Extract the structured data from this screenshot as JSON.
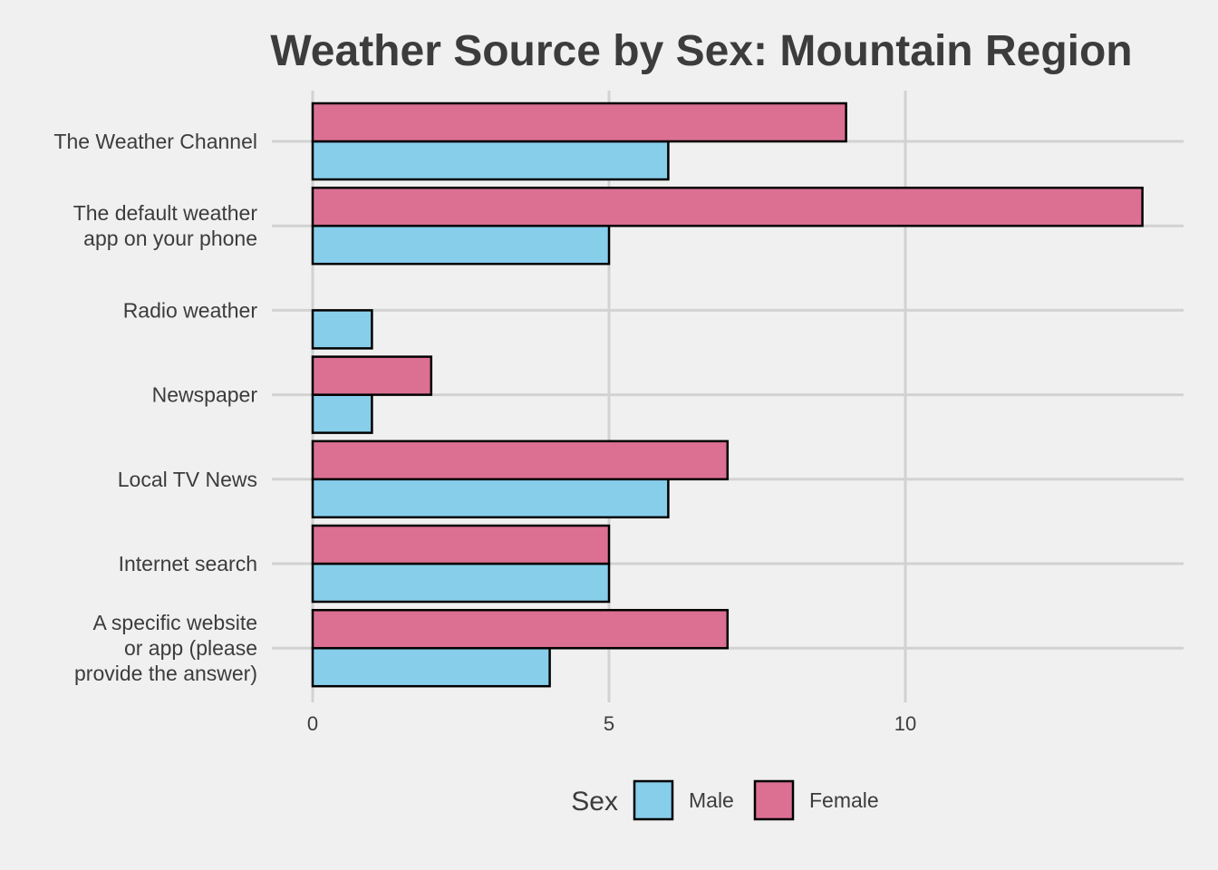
{
  "chart_data": {
    "type": "bar",
    "orientation": "horizontal",
    "title": "Weather Source by Sex: Mountain Region",
    "xlabel": "",
    "ylabel": "",
    "categories": [
      "The Weather Channel",
      "The default weather\napp on your phone",
      "Radio weather",
      "Newspaper",
      "Local TV News",
      "Internet search",
      "A specific website\nor app (please\nprovide the answer)"
    ],
    "series": [
      {
        "name": "Male",
        "color": "#87ceeb",
        "values": [
          6,
          5,
          1,
          1,
          6,
          5,
          4
        ]
      },
      {
        "name": "Female",
        "color": "#db7093",
        "values": [
          9,
          14,
          0,
          2,
          7,
          5,
          7
        ]
      }
    ],
    "xlim": [
      0,
      14.7
    ],
    "x_ticks": [
      0,
      5,
      10
    ],
    "grid": true,
    "legend": {
      "title": "Sex",
      "position": "bottom",
      "entries": [
        "Male",
        "Female"
      ]
    },
    "background": "#f0f0f0"
  }
}
